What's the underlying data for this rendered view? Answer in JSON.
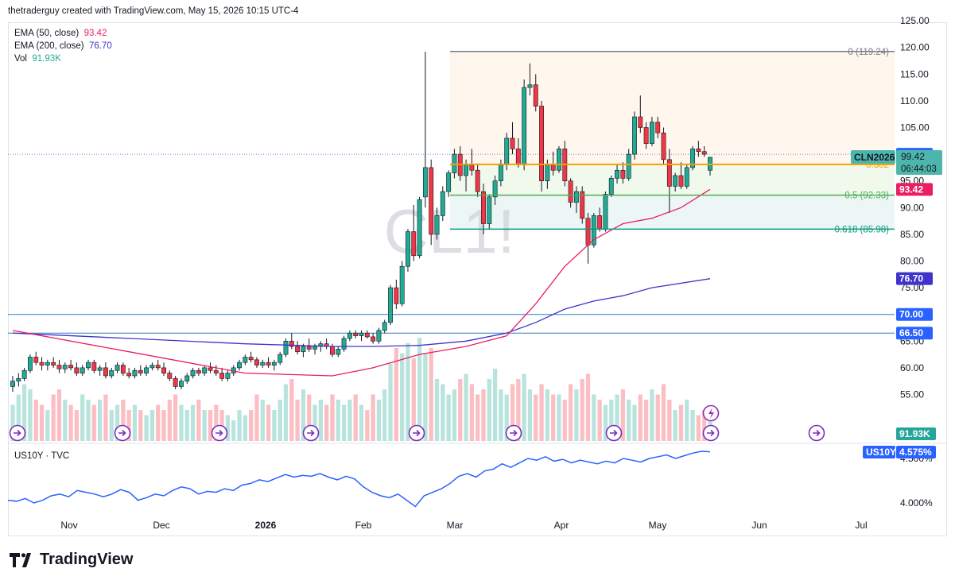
{
  "header": {
    "credit": "thetraderguy created with TradingView.com, May 15, 2026 10:15 UTC-4"
  },
  "watermark": "CL1!",
  "legend": {
    "ema50_label": "EMA (50, close)",
    "ema50_value": "93.42",
    "ema200_label": "EMA (200, close)",
    "ema200_value": "76.70",
    "vol_label": "Vol",
    "vol_value": "91.93K"
  },
  "lower_pane": {
    "label": "US10Y · TVC",
    "badge": "US10Y",
    "value": "4.575%",
    "ticks": [
      "4.500%",
      "4.000%"
    ]
  },
  "price_axis": {
    "ticks": [
      "125.00",
      "120.00",
      "115.00",
      "110.00",
      "105.00",
      "100.00",
      "95.00",
      "90.00",
      "85.00",
      "80.00",
      "75.00",
      "70.00",
      "65.00",
      "60.00",
      "55.00"
    ]
  },
  "badges": {
    "hline_100": "100.00",
    "symbol": "CLN2026",
    "last_price": "99.42",
    "countdown": "06:44:03",
    "ema50": "93.42",
    "ema200": "76.70",
    "hline_70": "70.00",
    "hline_66": "66.50",
    "volume": "91.93K"
  },
  "fib_labels": {
    "f0": "0 (119.24)",
    "f382": "0.382",
    "f05": "0.5 (92.33)",
    "f618": "0.618 (85.98)"
  },
  "time_axis": [
    "Nov",
    "Dec",
    "2026",
    "Feb",
    "Mar",
    "Apr",
    "May",
    "Jun",
    "Jul"
  ],
  "brand": "TradingView",
  "colors": {
    "up": "#22ab94",
    "down": "#f23645",
    "ema50": "#e91e63",
    "ema200": "#3f33cc",
    "fib0": "#787b86",
    "fib382": "#f5a000",
    "fib05": "#4caf50",
    "fib618": "#089981",
    "hline": "#3179c9"
  },
  "chart_data": {
    "type": "candlestick",
    "symbol": "CLN2026",
    "ylim": [
      50,
      127
    ],
    "horizontal_levels": [
      100.0,
      70.0,
      66.5
    ],
    "fibonacci": [
      {
        "level": "0",
        "price": 119.24
      },
      {
        "level": "0.382",
        "price": 98.1
      },
      {
        "level": "0.5",
        "price": 92.33
      },
      {
        "level": "0.618",
        "price": 85.98
      }
    ],
    "candles": [
      [
        56.5,
        58.5,
        55.5,
        57.5
      ],
      [
        57.5,
        59.0,
        56.5,
        58.0
      ],
      [
        58.0,
        60.0,
        57.5,
        59.5
      ],
      [
        59.5,
        62.5,
        59.0,
        62.0
      ],
      [
        62.0,
        63.0,
        60.5,
        61.0
      ],
      [
        61.0,
        62.0,
        59.5,
        60.5
      ],
      [
        60.5,
        61.5,
        59.5,
        61.0
      ],
      [
        61.0,
        62.0,
        60.0,
        60.5
      ],
      [
        60.5,
        61.5,
        59.0,
        59.8
      ],
      [
        59.8,
        61.0,
        59.0,
        60.5
      ],
      [
        60.5,
        61.5,
        59.5,
        60.0
      ],
      [
        60.0,
        61.0,
        58.5,
        59.0
      ],
      [
        59.0,
        60.5,
        58.5,
        60.0
      ],
      [
        60.0,
        61.5,
        59.5,
        61.0
      ],
      [
        61.0,
        61.5,
        59.0,
        59.5
      ],
      [
        59.5,
        60.5,
        58.5,
        60.0
      ],
      [
        60.0,
        61.0,
        58.0,
        58.5
      ],
      [
        58.5,
        60.0,
        58.0,
        59.5
      ],
      [
        59.5,
        61.0,
        59.0,
        60.5
      ],
      [
        60.5,
        61.0,
        58.5,
        59.0
      ],
      [
        59.0,
        60.0,
        58.0,
        58.5
      ],
      [
        58.5,
        60.0,
        58.0,
        59.5
      ],
      [
        59.5,
        60.5,
        58.5,
        59.0
      ],
      [
        59.0,
        60.5,
        58.5,
        60.0
      ],
      [
        60.0,
        61.0,
        59.5,
        60.5
      ],
      [
        60.5,
        61.5,
        59.5,
        60.0
      ],
      [
        60.0,
        61.0,
        58.5,
        59.0
      ],
      [
        59.0,
        59.5,
        57.5,
        58.0
      ],
      [
        58.0,
        58.5,
        56.0,
        56.5
      ],
      [
        56.5,
        58.0,
        56.0,
        57.5
      ],
      [
        57.5,
        59.0,
        57.0,
        58.5
      ],
      [
        58.5,
        60.0,
        58.0,
        59.5
      ],
      [
        59.5,
        60.0,
        58.5,
        59.0
      ],
      [
        59.0,
        60.5,
        58.5,
        60.0
      ],
      [
        60.0,
        61.0,
        59.0,
        59.5
      ],
      [
        59.5,
        60.5,
        58.5,
        59.0
      ],
      [
        59.0,
        60.0,
        57.5,
        58.0
      ],
      [
        58.0,
        59.5,
        57.5,
        59.0
      ],
      [
        59.0,
        60.5,
        58.5,
        60.0
      ],
      [
        60.0,
        61.5,
        59.5,
        61.0
      ],
      [
        61.0,
        62.5,
        60.5,
        62.0
      ],
      [
        62.0,
        63.0,
        61.0,
        61.5
      ],
      [
        61.5,
        62.0,
        60.0,
        60.5
      ],
      [
        60.5,
        61.5,
        60.0,
        61.0
      ],
      [
        61.0,
        62.0,
        60.0,
        60.5
      ],
      [
        60.5,
        61.5,
        59.5,
        61.0
      ],
      [
        61.0,
        63.0,
        60.5,
        62.5
      ],
      [
        62.5,
        65.5,
        62.0,
        65.0
      ],
      [
        65.0,
        66.5,
        63.5,
        64.0
      ],
      [
        64.0,
        65.0,
        62.5,
        63.0
      ],
      [
        63.0,
        64.5,
        62.0,
        64.0
      ],
      [
        64.0,
        65.5,
        63.0,
        63.5
      ],
      [
        63.5,
        64.5,
        62.5,
        64.0
      ],
      [
        64.0,
        65.0,
        63.0,
        64.5
      ],
      [
        64.5,
        65.5,
        63.5,
        64.0
      ],
      [
        64.0,
        64.5,
        62.0,
        62.5
      ],
      [
        62.5,
        64.0,
        62.0,
        63.5
      ],
      [
        63.5,
        66.0,
        63.0,
        65.5
      ],
      [
        65.5,
        67.0,
        65.0,
        66.5
      ],
      [
        66.5,
        67.0,
        65.5,
        66.0
      ],
      [
        66.0,
        67.0,
        65.0,
        66.5
      ],
      [
        66.5,
        67.0,
        65.5,
        65.8
      ],
      [
        65.8,
        66.5,
        64.5,
        65.0
      ],
      [
        65.0,
        67.5,
        64.5,
        67.0
      ],
      [
        67.0,
        69.0,
        66.5,
        68.5
      ],
      [
        68.5,
        75.5,
        68.0,
        75.0
      ],
      [
        75.0,
        76.5,
        71.0,
        72.0
      ],
      [
        72.0,
        80.0,
        71.5,
        79.0
      ],
      [
        79.0,
        86.0,
        78.0,
        85.5
      ],
      [
        85.5,
        90.5,
        80.0,
        81.0
      ],
      [
        81.0,
        92.0,
        80.5,
        91.5
      ],
      [
        92.0,
        119.2,
        90.0,
        97.5
      ],
      [
        97.5,
        99.0,
        83.0,
        85.0
      ],
      [
        85.0,
        90.0,
        84.0,
        88.5
      ],
      [
        88.5,
        94.0,
        87.5,
        93.0
      ],
      [
        93.0,
        97.0,
        92.0,
        96.5
      ],
      [
        96.5,
        101.0,
        95.5,
        100.0
      ],
      [
        100.0,
        101.5,
        95.0,
        96.0
      ],
      [
        96.0,
        99.0,
        93.0,
        98.0
      ],
      [
        98.0,
        101.0,
        96.0,
        97.0
      ],
      [
        97.0,
        98.0,
        92.0,
        93.0
      ],
      [
        93.0,
        94.5,
        85.0,
        87.0
      ],
      [
        87.0,
        92.5,
        86.0,
        92.0
      ],
      [
        92.0,
        96.0,
        90.5,
        95.0
      ],
      [
        95.0,
        99.0,
        94.0,
        98.0
      ],
      [
        98.0,
        104.0,
        97.0,
        103.0
      ],
      [
        103.0,
        106.0,
        100.0,
        101.0
      ],
      [
        101.0,
        103.0,
        97.5,
        98.0
      ],
      [
        98.0,
        114.0,
        97.0,
        112.5
      ],
      [
        112.5,
        117.0,
        111.0,
        113.0
      ],
      [
        113.0,
        115.0,
        108.0,
        109.0
      ],
      [
        109.0,
        110.0,
        93.0,
        95.0
      ],
      [
        95.0,
        99.0,
        93.5,
        98.0
      ],
      [
        98.0,
        100.5,
        96.0,
        97.0
      ],
      [
        97.0,
        101.5,
        96.5,
        101.0
      ],
      [
        101.0,
        102.5,
        94.0,
        95.0
      ],
      [
        95.0,
        95.5,
        90.0,
        91.0
      ],
      [
        91.0,
        94.0,
        89.0,
        93.0
      ],
      [
        93.0,
        94.0,
        87.0,
        88.0
      ],
      [
        88.0,
        89.0,
        79.5,
        83.0
      ],
      [
        83.0,
        89.0,
        82.5,
        88.5
      ],
      [
        88.5,
        90.0,
        85.5,
        86.0
      ],
      [
        86.0,
        93.0,
        85.5,
        92.5
      ],
      [
        92.5,
        96.0,
        92.0,
        95.5
      ],
      [
        95.5,
        98.0,
        94.5,
        97.0
      ],
      [
        97.0,
        98.5,
        94.5,
        95.5
      ],
      [
        95.5,
        101.0,
        95.0,
        100.0
      ],
      [
        100.0,
        108.0,
        99.0,
        107.0
      ],
      [
        107.0,
        111.0,
        104.0,
        105.0
      ],
      [
        105.0,
        106.0,
        101.0,
        102.0
      ],
      [
        102.0,
        107.0,
        101.5,
        106.0
      ],
      [
        106.0,
        107.0,
        103.0,
        104.0
      ],
      [
        104.0,
        105.0,
        98.0,
        99.0
      ],
      [
        99.0,
        101.0,
        89.0,
        94.0
      ],
      [
        94.0,
        96.5,
        93.0,
        96.0
      ],
      [
        96.0,
        98.5,
        93.5,
        94.0
      ],
      [
        94.0,
        98.0,
        93.5,
        97.5
      ],
      [
        97.5,
        101.5,
        97.0,
        101.0
      ],
      [
        101.0,
        102.5,
        99.5,
        100.5
      ],
      [
        100.5,
        101.5,
        99.5,
        100.0
      ],
      [
        97.0,
        99.5,
        96.0,
        99.42
      ]
    ],
    "volume": [
      0.35,
      0.45,
      0.55,
      0.5,
      0.4,
      0.35,
      0.3,
      0.45,
      0.5,
      0.4,
      0.35,
      0.3,
      0.45,
      0.4,
      0.35,
      0.4,
      0.45,
      0.3,
      0.35,
      0.4,
      0.3,
      0.35,
      0.3,
      0.25,
      0.3,
      0.35,
      0.3,
      0.4,
      0.45,
      0.35,
      0.3,
      0.35,
      0.4,
      0.3,
      0.3,
      0.35,
      0.3,
      0.25,
      0.2,
      0.3,
      0.25,
      0.3,
      0.45,
      0.4,
      0.35,
      0.3,
      0.4,
      0.55,
      0.6,
      0.4,
      0.5,
      0.45,
      0.35,
      0.4,
      0.35,
      0.45,
      0.4,
      0.35,
      0.4,
      0.45,
      0.35,
      0.3,
      0.45,
      0.4,
      0.5,
      0.75,
      0.9,
      0.85,
      0.95,
      0.8,
      1.0,
      0.85,
      0.9,
      0.6,
      0.55,
      0.45,
      0.5,
      0.6,
      0.65,
      0.55,
      0.45,
      0.5,
      0.6,
      0.7,
      0.5,
      0.45,
      0.55,
      0.6,
      0.65,
      0.5,
      0.45,
      0.55,
      0.5,
      0.45,
      0.45,
      0.4,
      0.55,
      0.5,
      0.6,
      0.65,
      0.45,
      0.4,
      0.35,
      0.4,
      0.45,
      0.5,
      0.4,
      0.35,
      0.45,
      0.4,
      0.5,
      0.45,
      0.55,
      0.4,
      0.3,
      0.35,
      0.4,
      0.3,
      0.25,
      0.3,
      0.2
    ],
    "ema50": [
      [
        0,
        67
      ],
      [
        20,
        63
      ],
      [
        40,
        59
      ],
      [
        55,
        58.5
      ],
      [
        62,
        60
      ],
      [
        70,
        62.5
      ],
      [
        78,
        64
      ],
      [
        85,
        66
      ],
      [
        90,
        72
      ],
      [
        95,
        79
      ],
      [
        100,
        84
      ],
      [
        105,
        87
      ],
      [
        110,
        88
      ],
      [
        115,
        90
      ],
      [
        120,
        93.42
      ]
    ],
    "ema200": [
      [
        0,
        66.5
      ],
      [
        20,
        65.5
      ],
      [
        40,
        64.5
      ],
      [
        55,
        64
      ],
      [
        62,
        64
      ],
      [
        70,
        64.2
      ],
      [
        78,
        65
      ],
      [
        85,
        66.5
      ],
      [
        90,
        68.5
      ],
      [
        95,
        71
      ],
      [
        100,
        72.5
      ],
      [
        105,
        73.5
      ],
      [
        110,
        75
      ],
      [
        120,
        76.7
      ]
    ],
    "us10y": {
      "ylim": [
        3.87,
        4.6
      ],
      "values": [
        4.03,
        4.02,
        4.05,
        4.0,
        4.03,
        4.08,
        4.1,
        4.07,
        4.14,
        4.12,
        4.1,
        4.07,
        4.1,
        4.15,
        4.12,
        4.03,
        4.06,
        4.1,
        4.08,
        4.14,
        4.18,
        4.16,
        4.1,
        4.13,
        4.12,
        4.16,
        4.14,
        4.2,
        4.22,
        4.26,
        4.24,
        4.28,
        4.32,
        4.29,
        4.31,
        4.3,
        4.33,
        4.29,
        4.26,
        4.3,
        4.27,
        4.18,
        4.12,
        4.08,
        4.06,
        4.1,
        4.03,
        3.96,
        4.08,
        4.12,
        4.16,
        4.22,
        4.3,
        4.33,
        4.29,
        4.36,
        4.38,
        4.44,
        4.4,
        4.45,
        4.5,
        4.48,
        4.52,
        4.47,
        4.49,
        4.45,
        4.48,
        4.46,
        4.44,
        4.47,
        4.45,
        4.5,
        4.48,
        4.46,
        4.5,
        4.52,
        4.54,
        4.5,
        4.53,
        4.56,
        4.58,
        4.575
      ]
    }
  }
}
